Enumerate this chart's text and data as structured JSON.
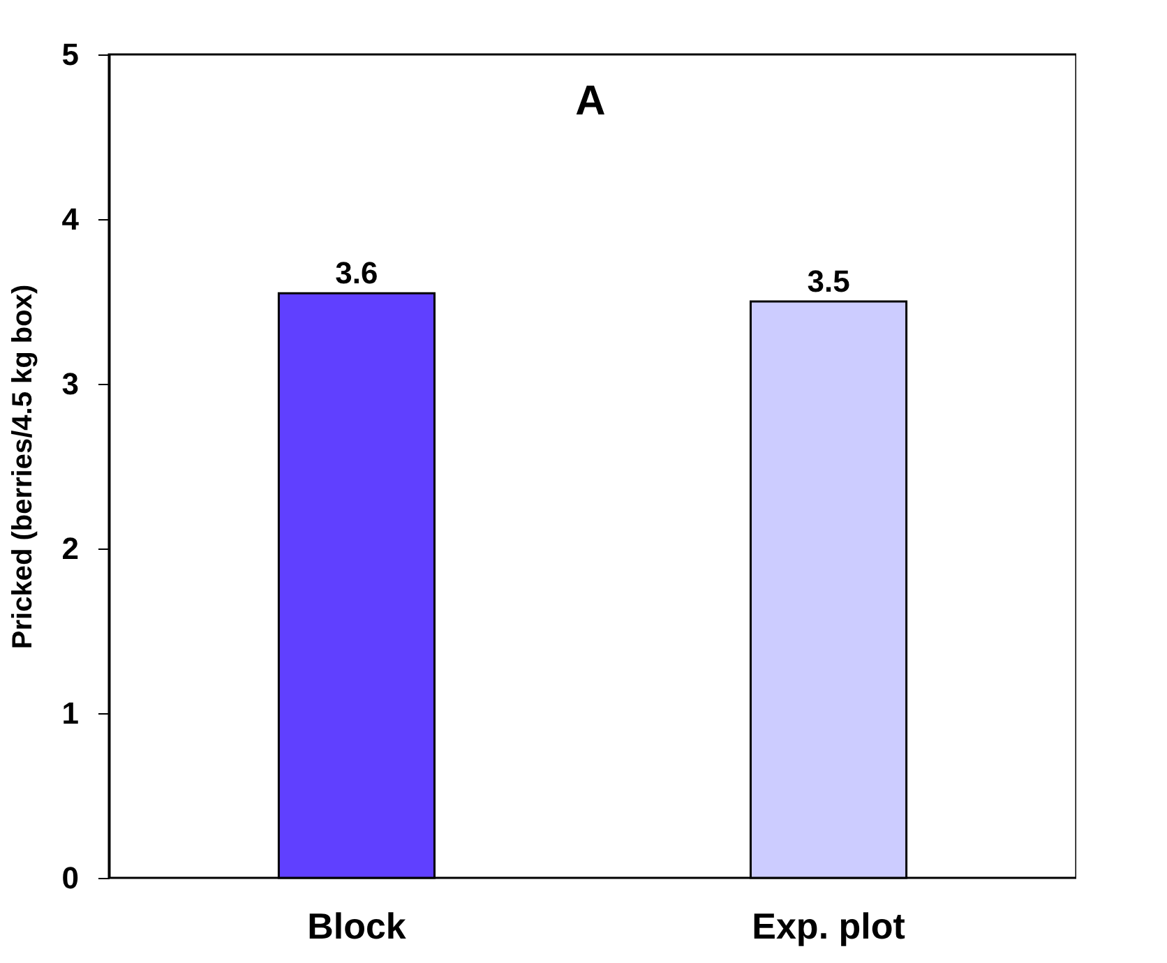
{
  "chart_data": {
    "type": "bar",
    "title": "A",
    "ylabel": "Pricked (berries/4.5 kg box)",
    "categories": [
      "Block",
      "Exp. plot"
    ],
    "values": [
      3.55,
      3.5
    ],
    "colors": [
      "#6040ff",
      "#ccccff"
    ],
    "value_labels": [
      "3.6",
      "3.5"
    ],
    "ylim": [
      0,
      5
    ],
    "yticks": [
      0,
      1,
      2,
      3,
      4,
      5
    ],
    "grid": false,
    "legend": false
  }
}
